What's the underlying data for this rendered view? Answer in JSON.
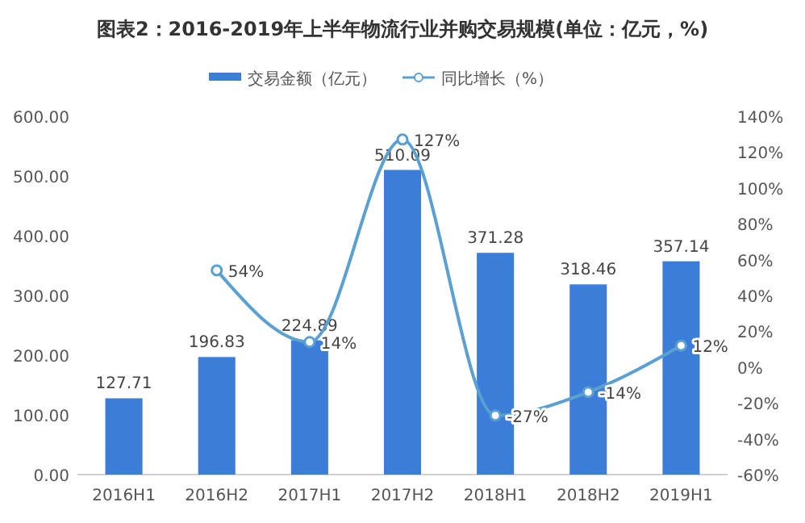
{
  "chart_data": {
    "type": "bar",
    "title": "图表2：2016-2019年上半年物流行业并购交易规模(单位：亿元，%)",
    "categories": [
      "2016H1",
      "2016H2",
      "2017H1",
      "2017H2",
      "2018H1",
      "2018H2",
      "2019H1"
    ],
    "series": [
      {
        "name": "交易金额（亿元）",
        "color": "#3b7dd8",
        "values": [
          127.71,
          196.83,
          224.89,
          510.09,
          371.28,
          318.46,
          357.14
        ],
        "value_labels": [
          "127.71",
          "196.83",
          "224.89",
          "510.09",
          "371.28",
          "318.46",
          "357.14"
        ]
      },
      {
        "name": "同比增长（%）",
        "type": "line",
        "axis": "y2",
        "color": "#5aa0d0",
        "marker": "circle",
        "values": [
          null,
          54,
          14,
          127,
          -27,
          -14,
          12
        ],
        "value_labels": [
          null,
          "54%",
          "14%",
          "127%",
          "-27%",
          "-14%",
          "12%"
        ]
      }
    ],
    "ylim": [
      0,
      600
    ],
    "yticks": [
      {
        "value": 0,
        "label": "0.00"
      },
      {
        "value": 100,
        "label": "100.00"
      },
      {
        "value": 200,
        "label": "200.00"
      },
      {
        "value": 300,
        "label": "300.00"
      },
      {
        "value": 400,
        "label": "400.00"
      },
      {
        "value": 500,
        "label": "500.00"
      },
      {
        "value": 600,
        "label": "600.00"
      }
    ],
    "y2lim": [
      -60,
      140
    ],
    "y2ticks": [
      {
        "value": -60,
        "label": "-60%"
      },
      {
        "value": -40,
        "label": "-40%"
      },
      {
        "value": -20,
        "label": "-20%"
      },
      {
        "value": 0,
        "label": "0%"
      },
      {
        "value": 20,
        "label": "20%"
      },
      {
        "value": 40,
        "label": "40%"
      },
      {
        "value": 60,
        "label": "60%"
      },
      {
        "value": 80,
        "label": "80%"
      },
      {
        "value": 100,
        "label": "100%"
      },
      {
        "value": 120,
        "label": "120%"
      },
      {
        "value": 140,
        "label": "140%"
      }
    ],
    "legend": "top",
    "grid": false
  }
}
